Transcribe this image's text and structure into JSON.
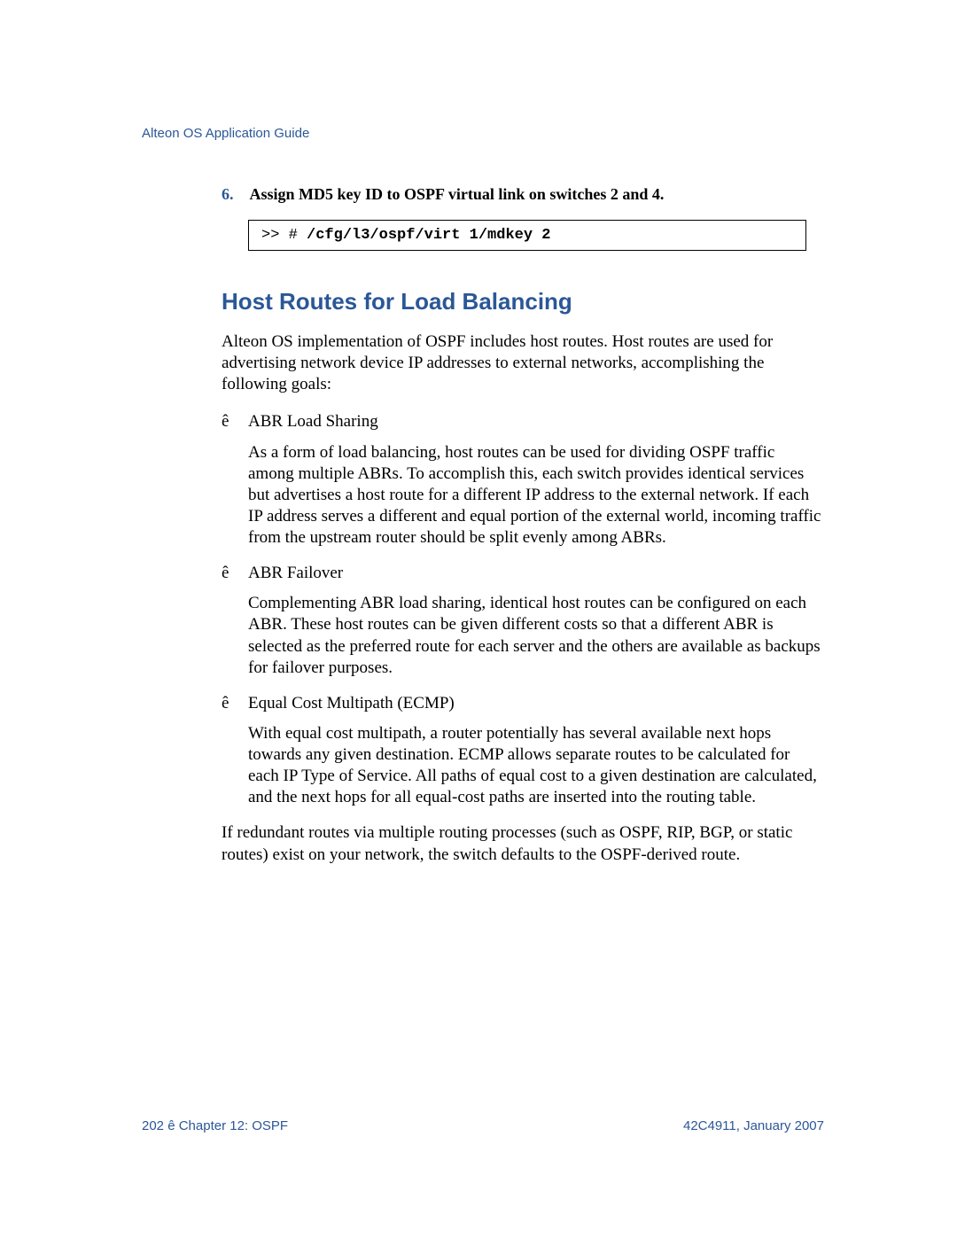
{
  "colors": {
    "brand_blue": "#2b5797",
    "text_black": "#000000",
    "page_bg": "#ffffff",
    "code_border": "#000000"
  },
  "typography": {
    "body_font": "Times New Roman",
    "heading_font": "Segoe UI / Myriad Pro",
    "code_font": "Courier New",
    "body_size_pt": 14,
    "heading_size_pt": 20,
    "header_footer_size_pt": 11
  },
  "header": {
    "title": "Alteon OS Application Guide"
  },
  "step": {
    "number": "6.",
    "text": "Assign MD5 key ID to OSPF virtual link on switches 2 and 4."
  },
  "code": {
    "prompt": ">> # ",
    "command": "/cfg/l3/ospf/virt 1/mdkey 2"
  },
  "section": {
    "heading": "Host Routes for Load Balancing",
    "intro": "Alteon OS implementation of OSPF includes host routes. Host routes are used for advertising network device IP addresses to external networks, accomplishing the following goals:"
  },
  "bullets": {
    "mark": "ê",
    "items": [
      {
        "label": "ABR Load Sharing",
        "body": "As a form of load balancing, host routes can be used for dividing OSPF traffic among multiple ABRs. To accomplish this, each switch provides identical services but advertises a host route for a different IP address to the external network. If each IP address serves a different and equal portion of the external world, incoming traffic from the upstream router should be split evenly among ABRs."
      },
      {
        "label": "ABR Failover",
        "body": "Complementing ABR load sharing, identical host routes can be configured on each ABR. These host routes can be given different costs so that a different ABR is selected as the preferred route for each server and the others are available as backups for failover purposes."
      },
      {
        "label": "Equal Cost Multipath (ECMP)",
        "body": "With equal cost multipath, a router potentially has several available next hops towards any given destination. ECMP allows separate routes to be calculated for each IP Type of Service. All paths of equal cost to a given destination are calculated, and the next hops for all equal-cost paths are inserted into the routing table."
      }
    ]
  },
  "closing": "If redundant routes via multiple routing processes (such as OSPF, RIP, BGP, or static routes) exist on your network, the switch defaults to the OSPF-derived route.",
  "footer": {
    "left": "202  ê  Chapter 12:  OSPF",
    "right": "42C4911, January 2007"
  }
}
